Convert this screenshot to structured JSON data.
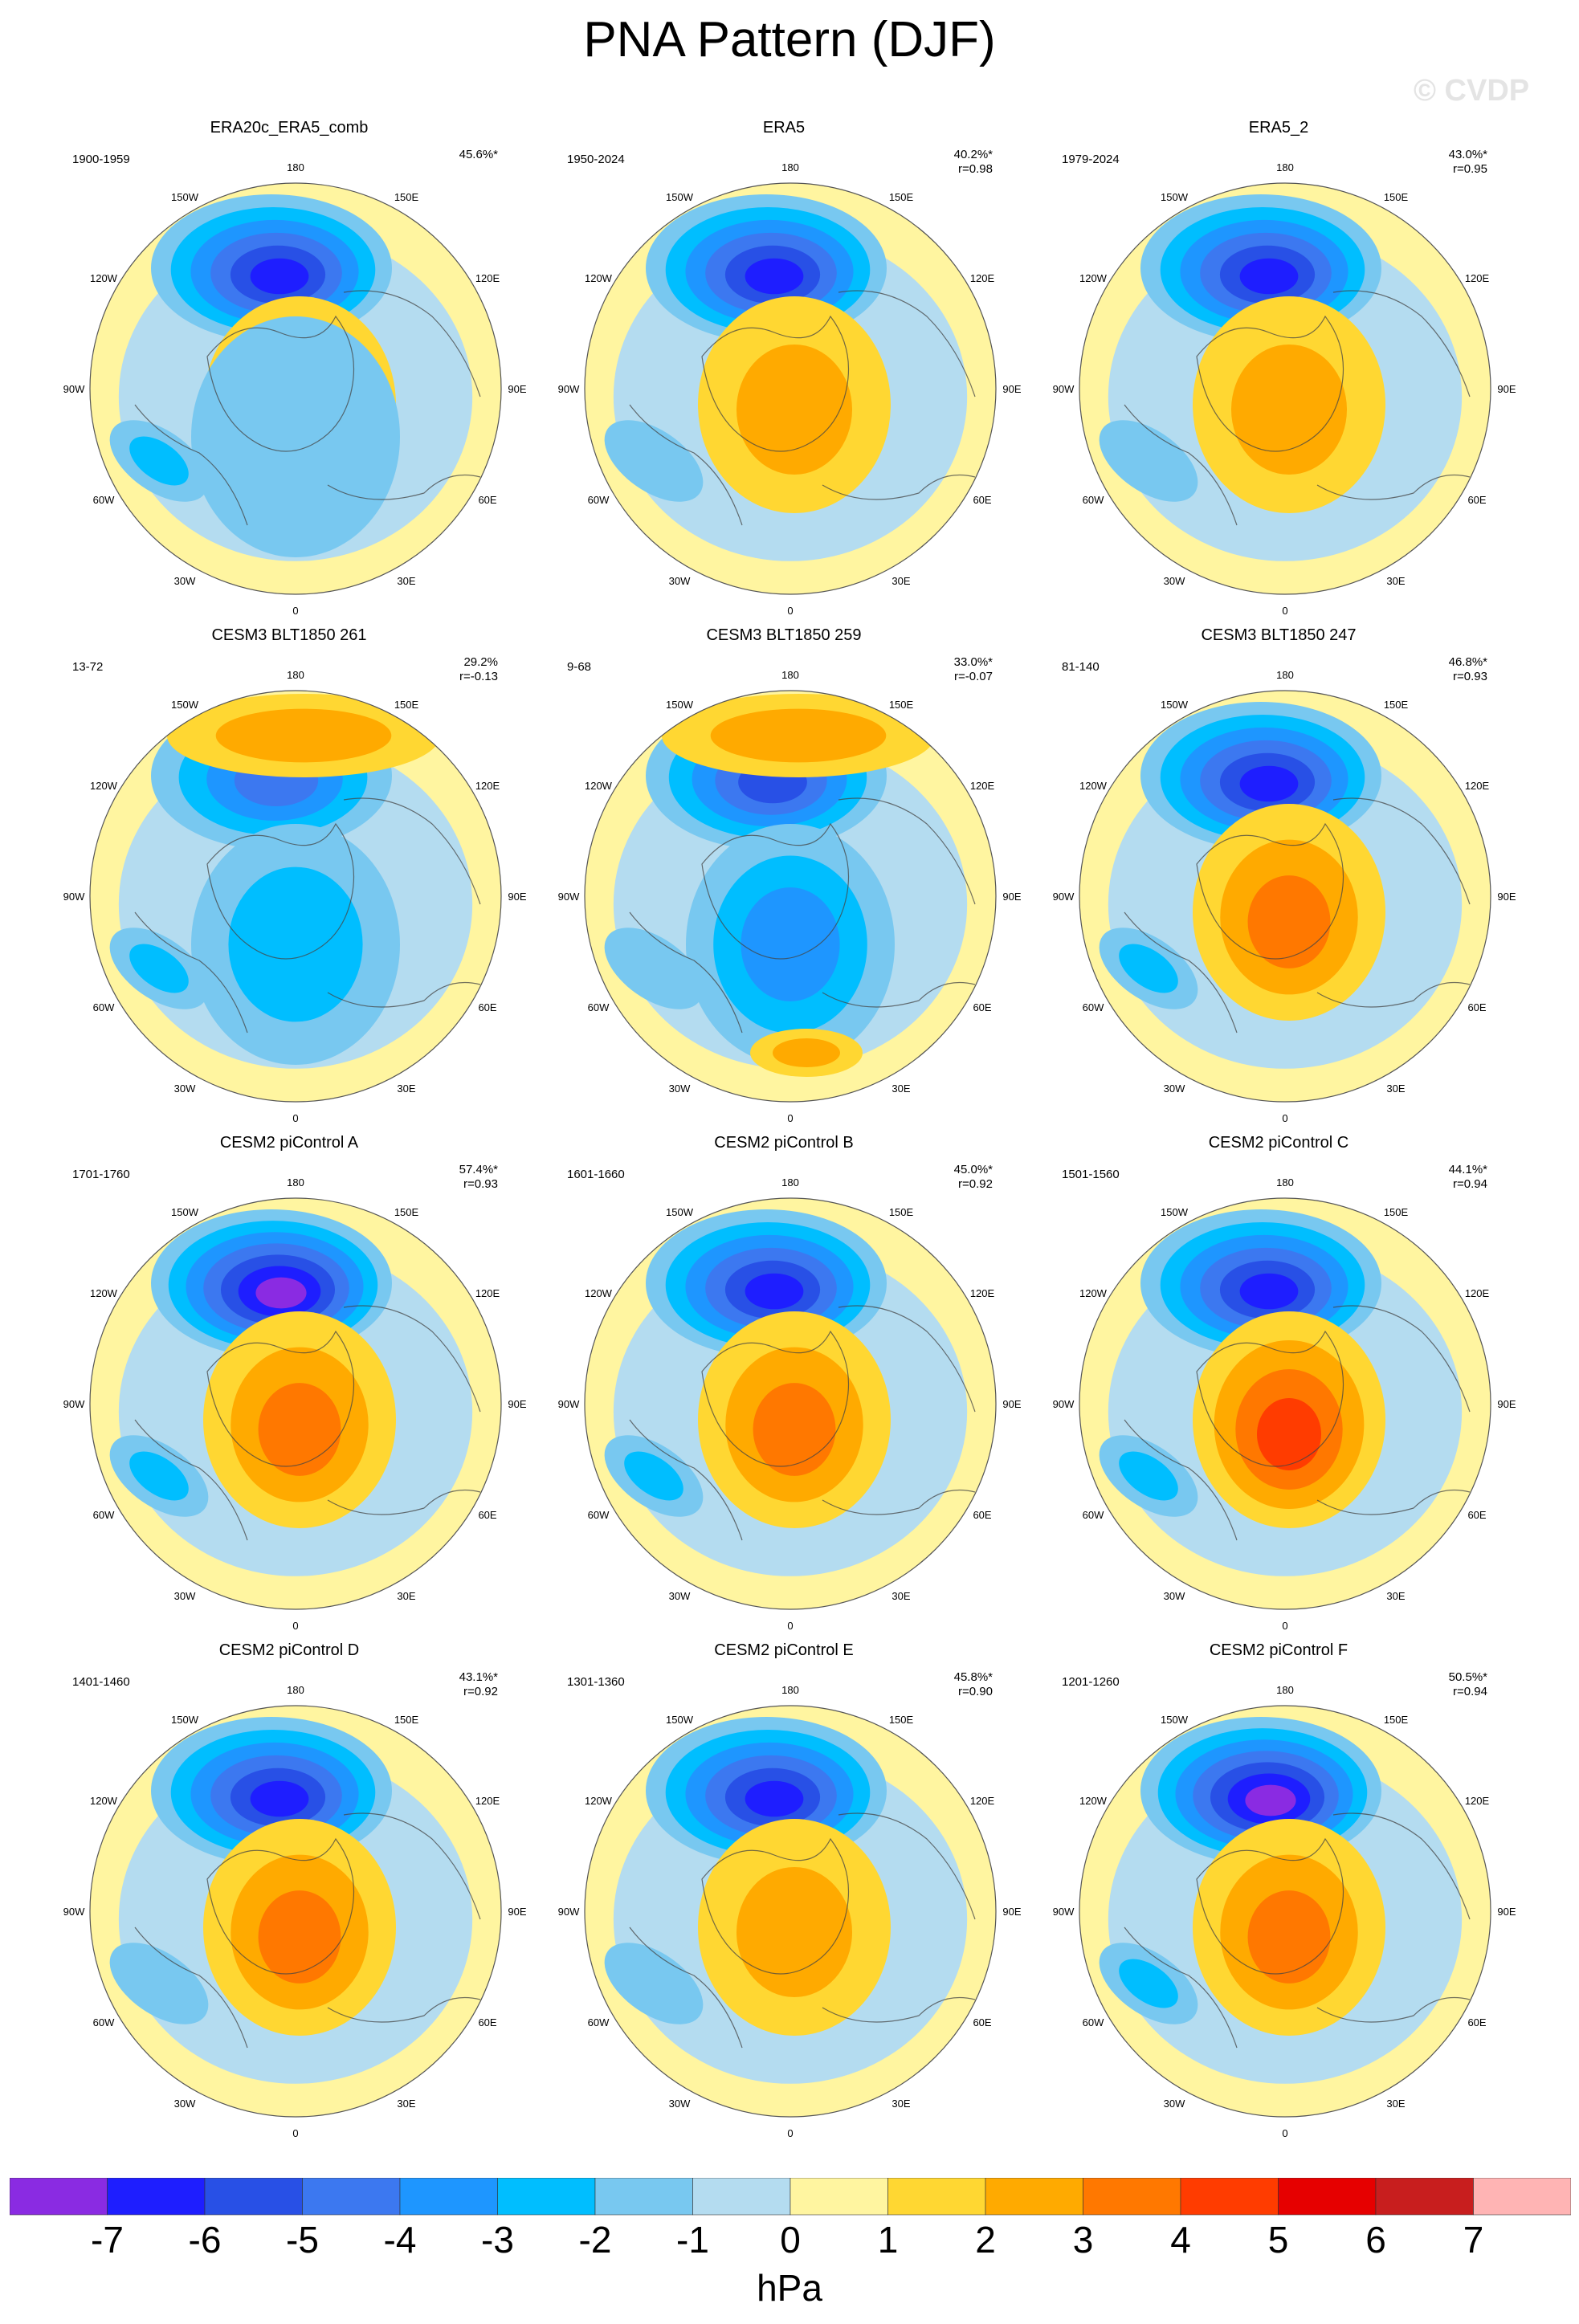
{
  "title": "PNA Pattern (DJF)",
  "watermark": "© CVDP",
  "longitude_labels": {
    "top": "180",
    "top_left": "150W",
    "top_right": "150E",
    "upper_left": "120W",
    "upper_right": "120E",
    "left": "90W",
    "right": "90E",
    "lower_left": "60W",
    "lower_right": "60E",
    "bottom_left": "30W",
    "bottom_right": "30E",
    "bottom": "0"
  },
  "chart_data": {
    "type": "polar-contour-map",
    "projection": "North Polar Stereographic",
    "units": "hPa",
    "colorbar": {
      "levels": [
        -7,
        -6,
        -5,
        -4,
        -3,
        -2,
        -1,
        0,
        1,
        2,
        3,
        4,
        5,
        6,
        7
      ],
      "colors": [
        "#8a2be2",
        "#1e1eff",
        "#2850e6",
        "#3c78f0",
        "#1e96ff",
        "#00beff",
        "#78c8f0",
        "#b4dcf0",
        "#fff5a0",
        "#ffd732",
        "#ffaa00",
        "#ff7800",
        "#ff3c00",
        "#e60000",
        "#c81e1e",
        "#ffb4b4"
      ]
    },
    "panels": [
      {
        "title": "ERA20c_ERA5_comb",
        "period": "1900-1959",
        "pct_var": "45.6%*",
        "r": "",
        "pacific_low": -6,
        "canada_high": 3,
        "n_pac_high": 0,
        "cont_low": -1,
        "atl_low": -2,
        "europe_high": 0
      },
      {
        "title": "ERA5",
        "period": "1950-2024",
        "pct_var": "40.2%*",
        "r": "r=0.98",
        "pacific_low": -6,
        "canada_high": 2,
        "n_pac_high": 0,
        "cont_low": 0,
        "atl_low": -1,
        "europe_high": 0
      },
      {
        "title": "ERA5_2",
        "period": "1979-2024",
        "pct_var": "43.0%*",
        "r": "r=0.95",
        "pacific_low": -6,
        "canada_high": 2,
        "n_pac_high": 0,
        "cont_low": 0,
        "atl_low": -1,
        "europe_high": 0
      },
      {
        "title": "CESM3 BLT1850 261",
        "period": "13-72",
        "pct_var": "29.2%",
        "r": "r=-0.13",
        "pacific_low": -4,
        "canada_high": 0,
        "n_pac_high": 2,
        "cont_low": -2,
        "atl_low": -2,
        "europe_high": 0
      },
      {
        "title": "CESM3 BLT1850 259",
        "period": "9-68",
        "pct_var": "33.0%*",
        "r": "r=-0.07",
        "pacific_low": -5,
        "canada_high": 0,
        "n_pac_high": 2,
        "cont_low": -3,
        "atl_low": -1,
        "europe_high": 2
      },
      {
        "title": "CESM3 BLT1850 247",
        "period": "81-140",
        "pct_var": "46.8%*",
        "r": "r=0.93",
        "pacific_low": -6,
        "canada_high": 3,
        "n_pac_high": 0,
        "cont_low": 0,
        "atl_low": -2,
        "europe_high": 0
      },
      {
        "title": "CESM2 piControl A",
        "period": "1701-1760",
        "pct_var": "57.4%*",
        "r": "r=0.93",
        "pacific_low": -7,
        "canada_high": 3,
        "n_pac_high": 0,
        "cont_low": 0,
        "atl_low": -2,
        "europe_high": 0
      },
      {
        "title": "CESM2 piControl B",
        "period": "1601-1660",
        "pct_var": "45.0%*",
        "r": "r=0.92",
        "pacific_low": -6,
        "canada_high": 3,
        "n_pac_high": 0,
        "cont_low": 0,
        "atl_low": -2,
        "europe_high": 0
      },
      {
        "title": "CESM2 piControl C",
        "period": "1501-1560",
        "pct_var": "44.1%*",
        "r": "r=0.94",
        "pacific_low": -6,
        "canada_high": 4,
        "n_pac_high": 0,
        "cont_low": 0,
        "atl_low": -2,
        "europe_high": 0
      },
      {
        "title": "CESM2 piControl D",
        "period": "1401-1460",
        "pct_var": "43.1%*",
        "r": "r=0.92",
        "pacific_low": -6,
        "canada_high": 3,
        "n_pac_high": 0,
        "cont_low": 0,
        "atl_low": -1,
        "europe_high": 0
      },
      {
        "title": "CESM2 piControl E",
        "period": "1301-1360",
        "pct_var": "45.8%*",
        "r": "r=0.90",
        "pacific_low": -6,
        "canada_high": 2,
        "n_pac_high": 0,
        "cont_low": 0,
        "atl_low": -1,
        "europe_high": 0
      },
      {
        "title": "CESM2 piControl F",
        "period": "1201-1260",
        "pct_var": "50.5%*",
        "r": "r=0.94",
        "pacific_low": -7,
        "canada_high": 3,
        "n_pac_high": 0,
        "cont_low": 0,
        "atl_low": -2,
        "europe_high": 0
      }
    ]
  }
}
